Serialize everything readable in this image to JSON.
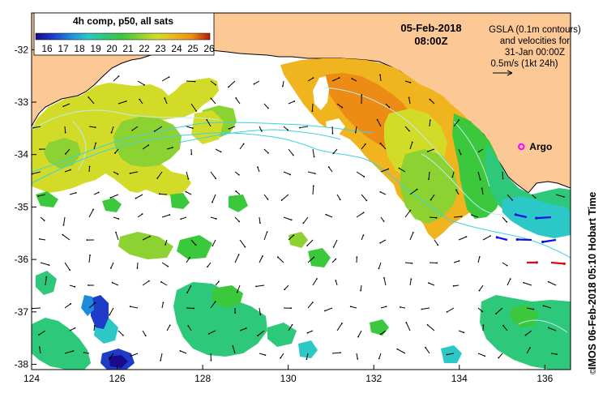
{
  "colorbar": {
    "title": "4h comp, p50, all sats",
    "ticks": [
      "16",
      "17",
      "18",
      "19",
      "20",
      "21",
      "22",
      "23",
      "24",
      "25",
      "26"
    ],
    "colors": [
      "#1a0a8c",
      "#1e3cc8",
      "#1e8cdc",
      "#2cc8c8",
      "#2ec87a",
      "#3cc83c",
      "#8cd232",
      "#d2dc28",
      "#f0b41e",
      "#ec8c14",
      "#d2460a",
      "#b41e0a"
    ]
  },
  "date_label": "05-Feb-2018",
  "time_label": "08:00Z",
  "gsla_info": {
    "line1": "GSLA (0.1m contours)",
    "line2": "and velocities for",
    "line3": "31-Jan 00:00Z",
    "line4": "0.5m/s (1kt 24h)"
  },
  "argo": {
    "label": "Argo",
    "color": "#ff00ff",
    "lon": 135.45,
    "lat": -33.85
  },
  "side_label": "IMOS 06-Feb-2018 05:10 Hobart Time",
  "copyright": "©",
  "axes": {
    "x_ticks": [
      124,
      126,
      128,
      130,
      132,
      134,
      136
    ],
    "y_ticks": [
      -32,
      -33,
      -34,
      -35,
      -36,
      -37,
      -38
    ],
    "xlim": [
      124,
      136.6
    ],
    "ylim": [
      -38.1,
      -31.3
    ]
  },
  "colors": {
    "land": "#fcc896",
    "ocean_nodata": "#ffffff",
    "contour": "#bcecee",
    "track": "#3cd2e6",
    "arrow": "#000000",
    "arrow_fast_neg": "#0a14dc",
    "arrow_fast_pos": "#dc0a0a"
  }
}
